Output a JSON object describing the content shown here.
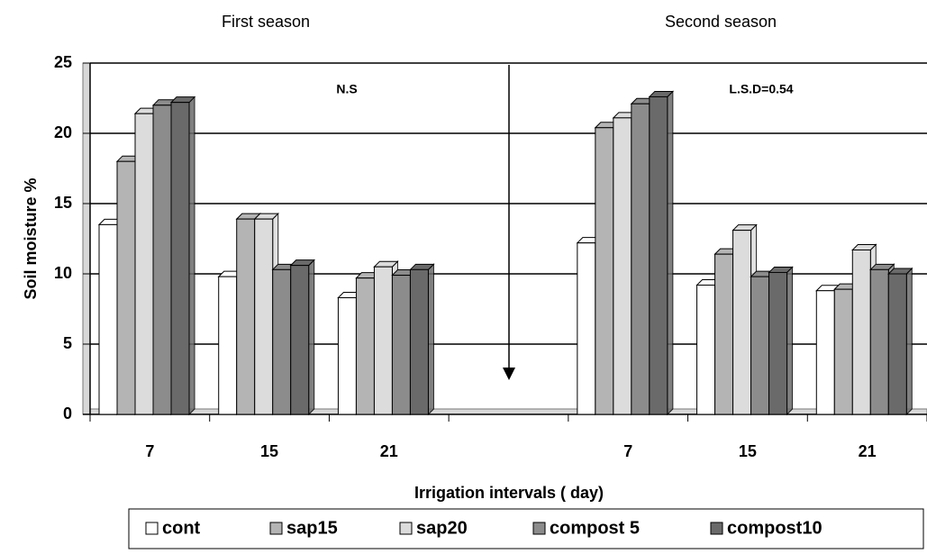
{
  "chart_data": {
    "type": "bar",
    "title_left": "First season",
    "title_right": "Second season",
    "annotations": [
      "N.S",
      "L.S.D=0.54"
    ],
    "ylabel": "Soil moisture %",
    "xlabel": "Irrigation intervals ( day)",
    "categories": [
      "7",
      "15",
      "21",
      null,
      "7",
      "15",
      "21"
    ],
    "series": [
      {
        "name": "cont",
        "color": "#ffffff",
        "values": [
          13.5,
          9.8,
          8.3,
          null,
          12.2,
          9.2,
          8.8
        ]
      },
      {
        "name": "sap15",
        "color": "#b4b4b4",
        "values": [
          18,
          13.9,
          9.7,
          null,
          20.4,
          11.4,
          8.9
        ]
      },
      {
        "name": "sap20",
        "color": "#dcdcdc",
        "values": [
          21.4,
          13.9,
          10.5,
          null,
          21.1,
          13.1,
          11.7
        ]
      },
      {
        "name": "compost 5",
        "color": "#8c8c8c",
        "values": [
          22,
          10.3,
          9.9,
          null,
          22.1,
          9.8,
          10.3
        ]
      },
      {
        "name": "compost10",
        "color": "#6a6a6a",
        "values": [
          22.2,
          10.6,
          10.3,
          null,
          22.6,
          10.1,
          10.0
        ]
      }
    ],
    "ylim": [
      0,
      25
    ],
    "yticks": [
      0,
      5,
      10,
      15,
      20,
      25
    ],
    "grid": true
  }
}
